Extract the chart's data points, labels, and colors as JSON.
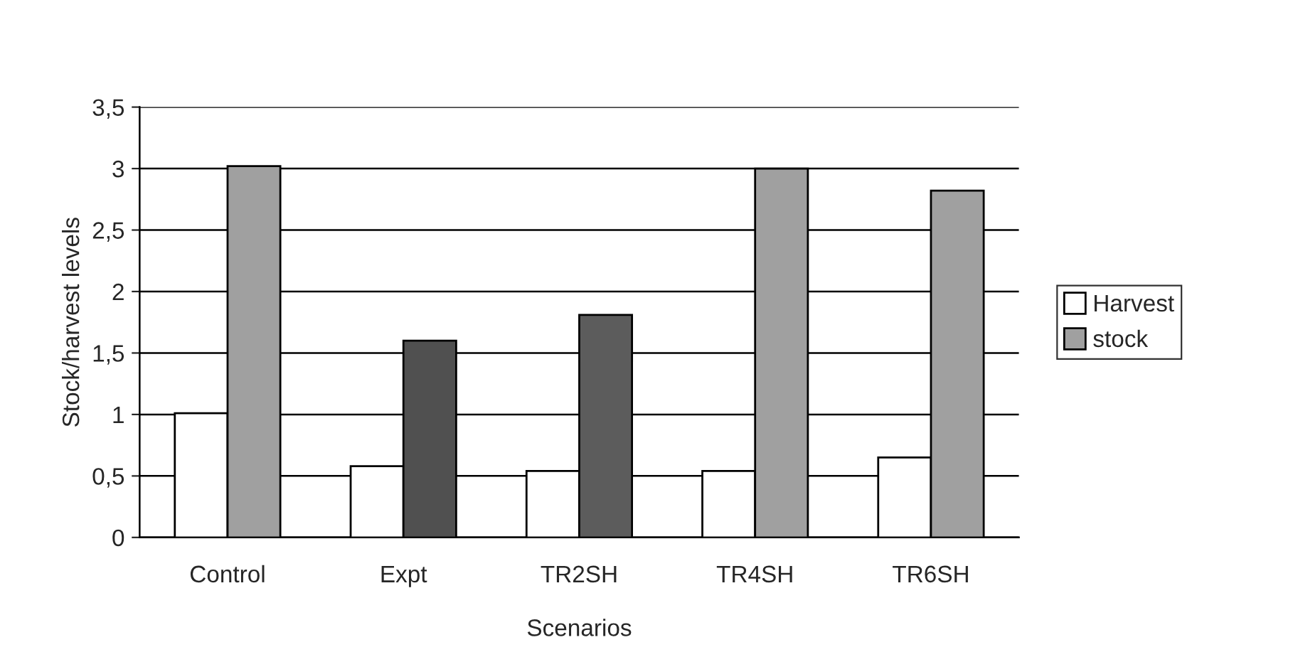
{
  "chart_data": {
    "type": "bar",
    "xlabel": "Scenarios",
    "ylabel": "Stock/harvest levels",
    "categories": [
      "Control",
      "Expt",
      "TR2SH",
      "TR4SH",
      "TR6SH"
    ],
    "series": [
      {
        "name": "Harvest",
        "color": "#ffffff",
        "values": [
          1.01,
          0.58,
          0.54,
          0.54,
          0.65
        ]
      },
      {
        "name": "stock",
        "color": "#a0a0a0",
        "colors": [
          "#a0a0a0",
          "#505050",
          "#5c5c5c",
          "#a0a0a0",
          "#a0a0a0"
        ],
        "values": [
          3.02,
          1.6,
          1.81,
          3.0,
          2.82
        ]
      }
    ],
    "ylim": [
      0,
      3.5
    ],
    "yticks": [
      {
        "value": 0,
        "label": "0"
      },
      {
        "value": 0.5,
        "label": "0,5"
      },
      {
        "value": 1,
        "label": "1"
      },
      {
        "value": 1.5,
        "label": "1,5"
      },
      {
        "value": 2,
        "label": "2"
      },
      {
        "value": 2.5,
        "label": "2,5"
      },
      {
        "value": 3,
        "label": "3"
      },
      {
        "value": 3.5,
        "label": "3,5"
      }
    ],
    "grid": "y",
    "legend": "right"
  }
}
